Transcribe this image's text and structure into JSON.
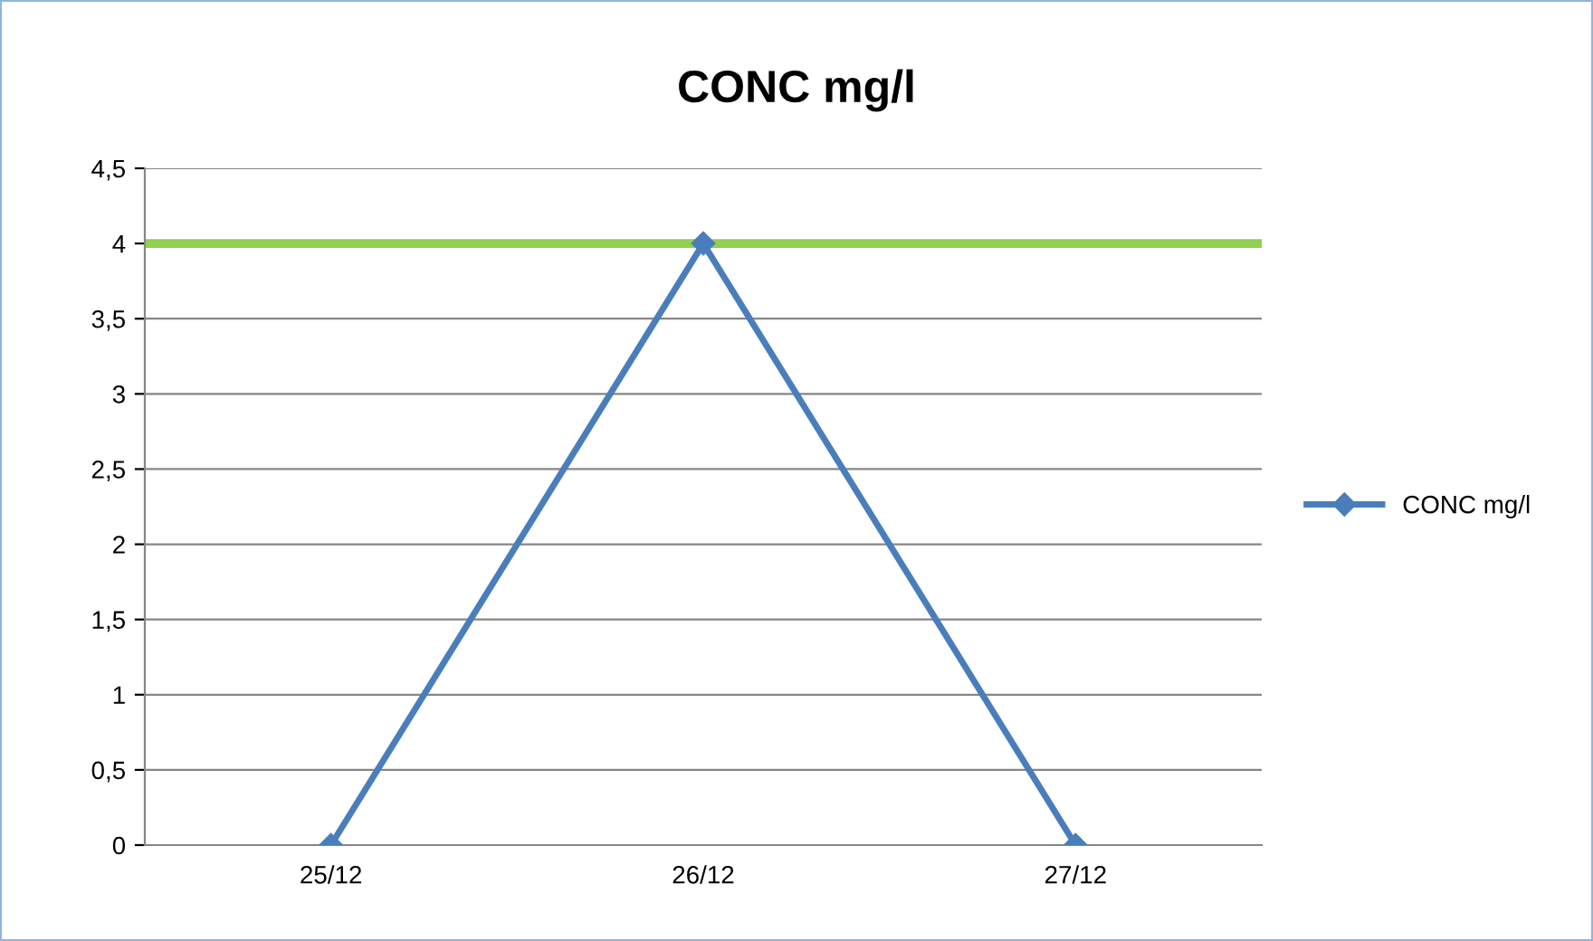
{
  "chart_data": {
    "type": "line",
    "title": "CONC mg/l",
    "categories": [
      "25/12",
      "26/12",
      "27/12"
    ],
    "series": [
      {
        "name": "CONC mg/l",
        "color": "#4a7ebb",
        "values": [
          0,
          4,
          0
        ]
      }
    ],
    "ylim": [
      0,
      4.5
    ],
    "yticks": [
      0,
      {
        "value": 0.5,
        "label": "0,5"
      },
      1,
      {
        "value": 1.5,
        "label": "1,5"
      },
      2,
      {
        "value": 2.5,
        "label": "2,5"
      },
      3,
      {
        "value": 3.5,
        "label": "3,5"
      },
      4,
      {
        "value": 4.5,
        "label": "4,5"
      }
    ],
    "ref_lines": [
      {
        "axis": "y",
        "value": 4,
        "color": "#92d050"
      }
    ],
    "grid": "y",
    "legend": "right",
    "marker": "diamond",
    "line_style": "solid"
  }
}
